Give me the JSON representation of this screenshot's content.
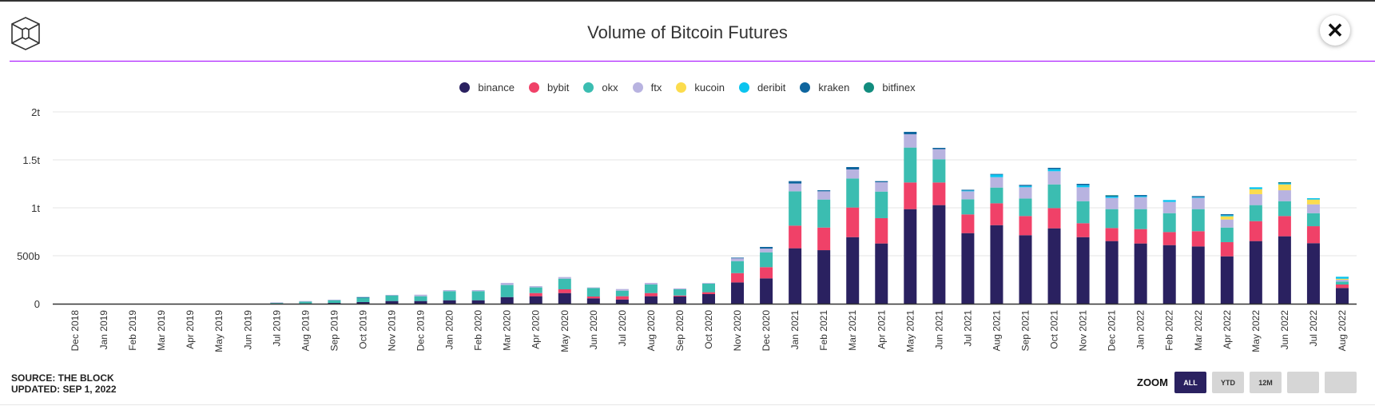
{
  "header": {
    "title": "Volume of Bitcoin Futures",
    "logo_icon": "cube-logo-icon",
    "close_icon": "close-icon",
    "accent": "#a200ff"
  },
  "footer": {
    "source": "SOURCE: THE BLOCK",
    "updated": "UPDATED: SEP 1, 2022"
  },
  "zoom": {
    "label": "ZOOM",
    "buttons": [
      "ALL",
      "YTD",
      "12M",
      "",
      ""
    ],
    "active": "ALL"
  },
  "chart_data": {
    "type": "bar",
    "stacked": true,
    "title": "Volume of Bitcoin Futures",
    "xlabel": "",
    "ylabel": "",
    "ylim": [
      0,
      2000
    ],
    "y_unit": "billions",
    "y_ticks": [
      {
        "v": 0,
        "label": "0"
      },
      {
        "v": 500,
        "label": "500b"
      },
      {
        "v": 1000,
        "label": "1t"
      },
      {
        "v": 1500,
        "label": "1.5t"
      },
      {
        "v": 2000,
        "label": "2t"
      }
    ],
    "grid": true,
    "legend_position": "top",
    "categories": [
      "Dec 2018",
      "Jan 2019",
      "Feb 2019",
      "Mar 2019",
      "Apr 2019",
      "May 2019",
      "Jun 2019",
      "Jul 2019",
      "Aug 2019",
      "Sep 2019",
      "Oct 2019",
      "Nov 2019",
      "Dec 2019",
      "Jan 2020",
      "Feb 2020",
      "Mar 2020",
      "Apr 2020",
      "May 2020",
      "Jun 2020",
      "Jul 2020",
      "Aug 2020",
      "Sep 2020",
      "Oct 2020",
      "Nov 2020",
      "Dec 2020",
      "Jan 2021",
      "Feb 2021",
      "Mar 2021",
      "Apr 2021",
      "May 2021",
      "Jun 2021",
      "Jul 2021",
      "Aug 2021",
      "Sep 2021",
      "Oct 2021",
      "Nov 2021",
      "Dec 2021",
      "Jan 2022",
      "Feb 2022",
      "Mar 2022",
      "Apr 2022",
      "May 2022",
      "Jun 2022",
      "Jul 2022",
      "Aug 2022"
    ],
    "series": [
      {
        "name": "binance",
        "color": "#2a2160",
        "values": [
          0,
          0,
          0,
          0,
          0,
          0,
          0,
          1,
          2,
          8,
          17,
          28,
          28,
          36,
          36,
          69,
          78,
          111,
          56,
          44,
          78,
          75,
          100,
          222,
          264,
          578,
          558,
          694,
          628,
          986,
          1028,
          736,
          819,
          714,
          786,
          694,
          653,
          628,
          611,
          597,
          494,
          653,
          703,
          631,
          164
        ]
      },
      {
        "name": "bybit",
        "color": "#f04168",
        "values": [
          0,
          0,
          0,
          0,
          0,
          0,
          0,
          0,
          0,
          0,
          0,
          0,
          0,
          0,
          0,
          0,
          33,
          39,
          19,
          34,
          33,
          10,
          20,
          97,
          117,
          236,
          236,
          309,
          264,
          278,
          236,
          195,
          228,
          200,
          211,
          145,
          136,
          150,
          136,
          159,
          148,
          208,
          211,
          177,
          36
        ]
      },
      {
        "name": "okx",
        "color": "#3bbdb1",
        "values": [
          0,
          0,
          0,
          0,
          0,
          0,
          0,
          10,
          20,
          31,
          44,
          61,
          50,
          95,
          95,
          126,
          59,
          111,
          89,
          58,
          89,
          65,
          90,
          125,
          155,
          358,
          292,
          303,
          277,
          364,
          242,
          158,
          164,
          183,
          247,
          230,
          197,
          208,
          197,
          230,
          152,
          167,
          155,
          136,
          31
        ]
      },
      {
        "name": "ftx",
        "color": "#b8b3e0",
        "values": [
          0,
          0,
          0,
          0,
          0,
          0,
          0,
          3,
          6,
          3,
          0,
          3,
          16,
          11,
          11,
          22,
          13,
          17,
          6,
          17,
          17,
          10,
          7,
          31,
          39,
          81,
          86,
          94,
          98,
          139,
          105,
          83,
          108,
          117,
          137,
          145,
          117,
          125,
          117,
          117,
          84,
          114,
          114,
          92,
          19
        ]
      },
      {
        "name": "kucoin",
        "color": "#fcdc4d",
        "values": [
          0,
          0,
          0,
          0,
          0,
          0,
          0,
          0,
          0,
          0,
          0,
          0,
          0,
          0,
          0,
          0,
          0,
          0,
          0,
          0,
          0,
          0,
          0,
          0,
          0,
          0,
          0,
          0,
          0,
          0,
          0,
          0,
          0,
          0,
          0,
          0,
          0,
          0,
          0,
          0,
          33,
          52,
          61,
          50,
          10
        ]
      },
      {
        "name": "deribit",
        "color": "#0bc4ef",
        "values": [
          0,
          0,
          0,
          0,
          0,
          0,
          0,
          0,
          0,
          0,
          0,
          0,
          0,
          0,
          0,
          0,
          0,
          0,
          0,
          0,
          0,
          0,
          0,
          0,
          0,
          0,
          0,
          0,
          0,
          0,
          0,
          8,
          28,
          14,
          22,
          22,
          14,
          10,
          20,
          8,
          11,
          20,
          12,
          14,
          21
        ]
      },
      {
        "name": "kraken",
        "color": "#0e659e",
        "values": [
          0,
          0,
          0,
          0,
          0,
          0,
          0,
          0,
          0,
          0,
          8,
          0,
          0,
          0,
          0,
          0,
          0,
          0,
          0,
          0,
          0,
          0,
          0,
          5,
          17,
          25,
          11,
          25,
          11,
          25,
          14,
          8,
          6,
          11,
          14,
          14,
          8,
          12,
          0,
          11,
          11,
          0,
          6,
          0,
          0
        ]
      },
      {
        "name": "bitfinex",
        "color": "#128c7e",
        "values": [
          0,
          0,
          0,
          0,
          0,
          0,
          0,
          0,
          0,
          0,
          0,
          0,
          0,
          0,
          0,
          0,
          0,
          0,
          0,
          0,
          0,
          0,
          0,
          0,
          0,
          0,
          0,
          0,
          0,
          0,
          0,
          0,
          0,
          0,
          0,
          0,
          6,
          0,
          0,
          0,
          0,
          0,
          5,
          0,
          0
        ]
      }
    ]
  }
}
